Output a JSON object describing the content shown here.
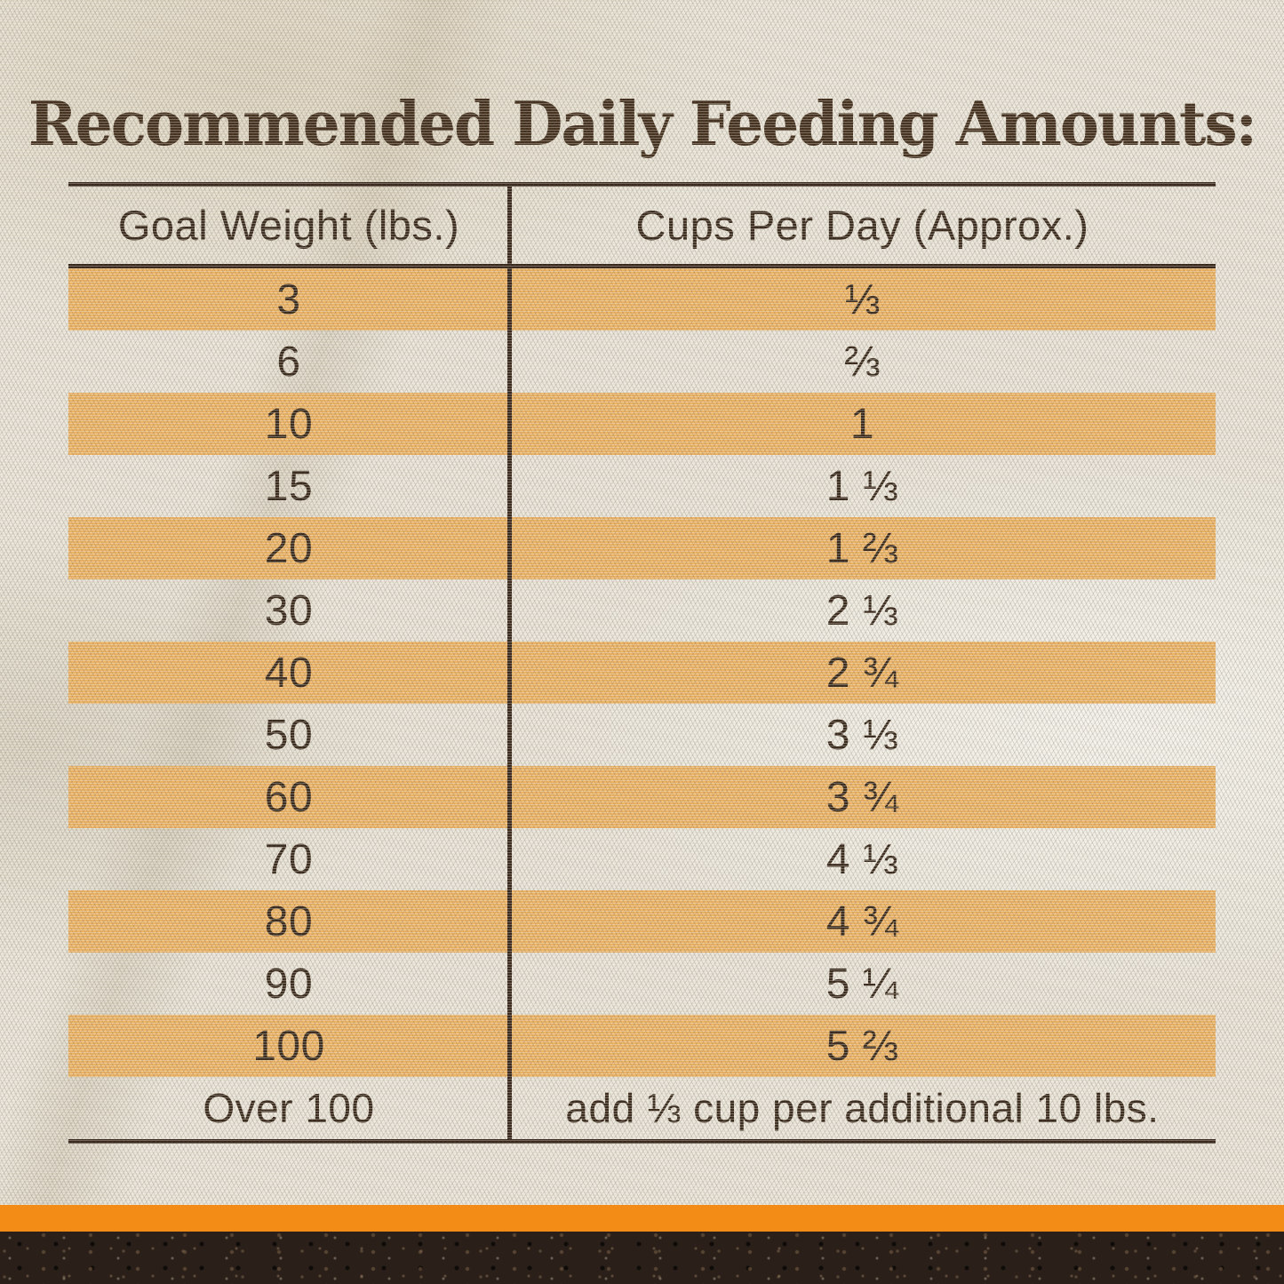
{
  "title": "Recommended Daily Feeding Amounts:",
  "colors": {
    "fabric_base": "#E8E3D6",
    "row_highlight": "#EDB466",
    "accent_bar": "#F28C17",
    "soil_brown": "#2B2019",
    "rule_line": "#38271A",
    "text_brown": "#3A2A1B",
    "title_brown": "#44301D"
  },
  "table": {
    "columns": [
      "Goal Weight (lbs.)",
      "Cups Per Day (Approx.)"
    ],
    "rows": [
      {
        "weight": "3",
        "cups": "⅓",
        "highlight": true
      },
      {
        "weight": "6",
        "cups": "⅔",
        "highlight": false
      },
      {
        "weight": "10",
        "cups": "1",
        "highlight": true
      },
      {
        "weight": "15",
        "cups": "1 ⅓",
        "highlight": false
      },
      {
        "weight": "20",
        "cups": "1 ⅔",
        "highlight": true
      },
      {
        "weight": "30",
        "cups": "2 ⅓",
        "highlight": false
      },
      {
        "weight": "40",
        "cups": "2 ¾",
        "highlight": true
      },
      {
        "weight": "50",
        "cups": "3 ⅓",
        "highlight": false
      },
      {
        "weight": "60",
        "cups": "3 ¾",
        "highlight": true
      },
      {
        "weight": "70",
        "cups": "4 ⅓",
        "highlight": false
      },
      {
        "weight": "80",
        "cups": "4 ¾",
        "highlight": true
      },
      {
        "weight": "90",
        "cups": "5 ¼",
        "highlight": false
      },
      {
        "weight": "100",
        "cups": "5 ⅔",
        "highlight": true
      },
      {
        "weight": "Over 100",
        "cups": "add ⅓ cup per additional 10 lbs.",
        "highlight": false
      }
    ]
  }
}
